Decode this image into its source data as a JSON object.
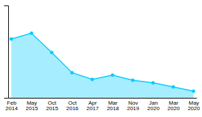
{
  "chart_data": {
    "type": "area",
    "categories": [
      "Feb\n2014",
      "May\n2015",
      "Oct\n2015",
      "Oct\n2016",
      "Apr\n2017",
      "Mar\n2018",
      "Nov\n2019",
      "Jan\n2020",
      "Mar\n2020",
      "May\n2020"
    ],
    "values": [
      9.0,
      9.35,
      8.2,
      7.0,
      6.6,
      6.85,
      6.55,
      6.4,
      6.15,
      5.9
    ],
    "color": "#00CCFF",
    "marker": "circle",
    "ylim": [
      5.5,
      11.0
    ],
    "yticks": [],
    "tick_labels": "x",
    "grid": false
  }
}
